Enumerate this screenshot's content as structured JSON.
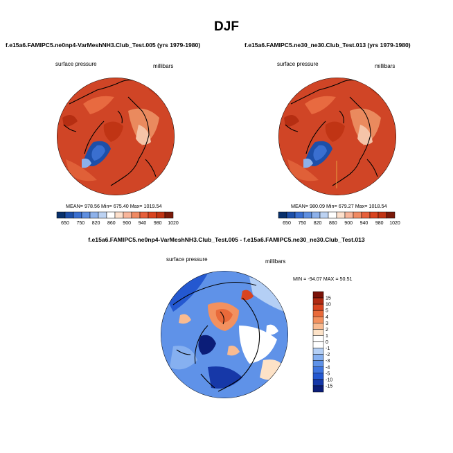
{
  "page": {
    "title": "DJF"
  },
  "colors": {
    "pressure_palette": [
      "#08306b",
      "#1d4fa8",
      "#3a6fd0",
      "#5f8fe0",
      "#8db1ea",
      "#bcd2f2",
      "#ffffff",
      "#fde0cc",
      "#f8b59a",
      "#f08a63",
      "#e6603c",
      "#d84420",
      "#c03414",
      "#7a1a0a"
    ],
    "diff_palette": [
      "#0b1d78",
      "#1638a8",
      "#2458d0",
      "#3f75df",
      "#5f92e8",
      "#86b0f0",
      "#b4cff5",
      "#ffffff",
      "#ffffff",
      "#fde2c7",
      "#f9bb91",
      "#f3915f",
      "#e96a3a",
      "#d84420",
      "#b02a12",
      "#7a1208"
    ]
  },
  "chart_data": [
    {
      "type": "heatmap",
      "title": "f.e15a6.FAMIPC5.ne0np4-VarMeshNH3.Club_Test.005 (yrs 1979-1980)",
      "variable": "surface pressure",
      "units": "millibars",
      "projection": "polar stereographic (north pole)",
      "stats_text": "MEAN= 978.56  Min= 675.40  Max= 1019.54",
      "stats": {
        "mean": 978.56,
        "min": 675.4,
        "max": 1019.54
      },
      "colorbar": {
        "orientation": "horizontal",
        "levels": [
          650,
          700,
          750,
          780,
          820,
          840,
          860,
          880,
          900,
          920,
          940,
          960,
          980,
          1000,
          1020
        ],
        "labels": [
          "650",
          "750",
          "820",
          "860",
          "900",
          "940",
          "980",
          "1020"
        ]
      }
    },
    {
      "type": "heatmap",
      "title": "f.e15a6.FAMIPC5.ne30_ne30.Club_Test.013 (yrs 1979-1980)",
      "variable": "surface pressure",
      "units": "millibars",
      "projection": "polar stereographic (north pole)",
      "stats_text": "MEAN= 980.09  Min= 679.27  Max= 1018.54",
      "stats": {
        "mean": 980.09,
        "min": 679.27,
        "max": 1018.54
      },
      "colorbar": {
        "orientation": "horizontal",
        "levels": [
          650,
          700,
          750,
          780,
          820,
          840,
          860,
          880,
          900,
          920,
          940,
          960,
          980,
          1000,
          1020
        ],
        "labels": [
          "650",
          "750",
          "820",
          "860",
          "900",
          "940",
          "980",
          "1020"
        ]
      }
    },
    {
      "type": "heatmap",
      "title": "f.e15a6.FAMIPC5.ne0np4-VarMeshNH3.Club_Test.005 - f.e15a6.FAMIPC5.ne30_ne30.Club_Test.013",
      "variable": "surface pressure",
      "units": "millibars",
      "projection": "polar stereographic (north pole)",
      "stats_text": "MIN = -94.07 MAX =  50.51",
      "stats": {
        "min": -94.07,
        "max": 50.51
      },
      "colorbar": {
        "orientation": "vertical",
        "labels": [
          "15",
          "10",
          "5",
          "4",
          "3",
          "2",
          "1",
          "0",
          "-1",
          "-2",
          "-3",
          "-4",
          "-5",
          "-10",
          "-15"
        ]
      }
    }
  ]
}
